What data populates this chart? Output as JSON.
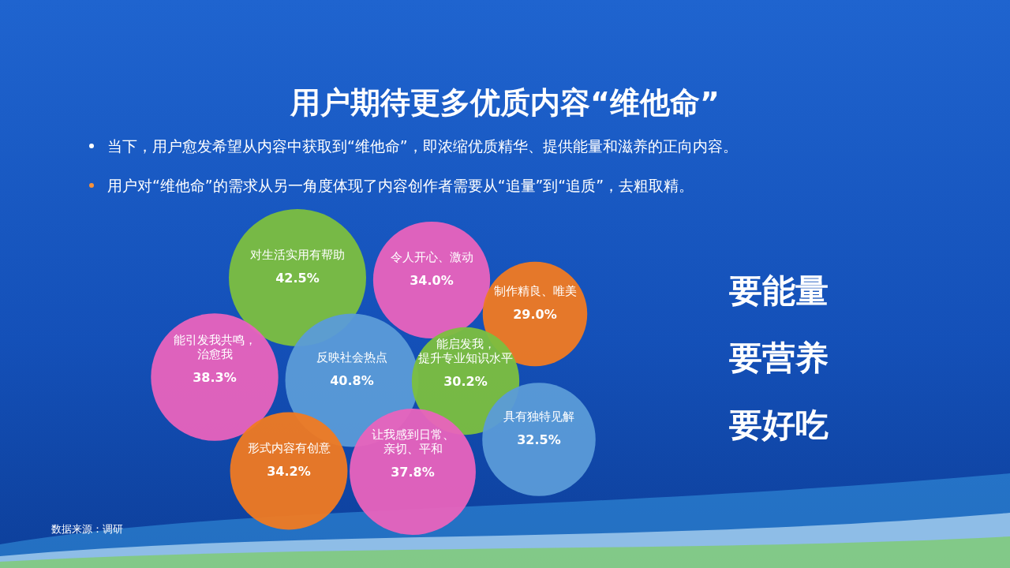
{
  "chart_data": {
    "type": "other",
    "title": "用户期待更多优质内容“维他命”",
    "categories": [
      "对生活实用有帮助",
      "令人开心、激动",
      "制作精良、唯美",
      "能引发我共鸣，治愈我",
      "反映社会热点",
      "能启发我，提升专业知识水平",
      "具有独特见解",
      "形式内容有创意",
      "让我感到日常、亲切、平和"
    ],
    "values": [
      42.5,
      34.0,
      29.0,
      38.3,
      40.8,
      30.2,
      32.5,
      34.2,
      37.8
    ],
    "value_labels": [
      "42.5%",
      "34.0%",
      "29.0%",
      "38.3%",
      "40.8%",
      "30.2%",
      "32.5%",
      "34.2%",
      "37.8%"
    ],
    "colors": [
      "#7cbf3f",
      "#e963bd",
      "#f07a22",
      "#e963bd",
      "#5b9bd8",
      "#7cbf3f",
      "#5b9bd8",
      "#f07a22",
      "#e963bd"
    ],
    "annotations": [
      "当下，用户愈发希望从内容中获取到“维他命”，即浓缩优质精华、提供能量和滋养的正向内容。",
      "用户对“维他命”的需求从另一角度体现了内容创作者需要从“追量”到“追质”，去粗取精。",
      "要能量",
      "要营养",
      "要好吃",
      "数据来源：调研"
    ]
  }
}
